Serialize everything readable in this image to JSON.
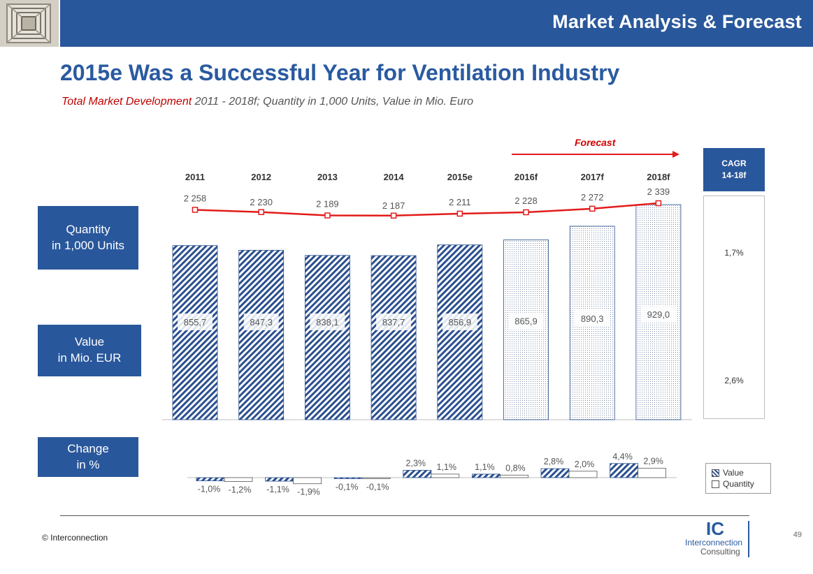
{
  "header": {
    "title": "Market Analysis & Forecast",
    "image_icon": "ventilation-grille-icon"
  },
  "title": "2015e Was a Successful Year for Ventilation Industry",
  "subtitle": {
    "highlight": "Total Market Development",
    "rest": " 2011 - 2018f; Quantity in 1,000 Units, Value in Mio. Euro"
  },
  "side_labels": {
    "quantity": "Quantity\nin 1,000 Units",
    "value": "Value\nin Mio. EUR",
    "change": "Change\nin %"
  },
  "forecast_label": "Forecast",
  "cagr": {
    "header": "CAGR\n14-18f",
    "quantity": "1,7%",
    "value": "2,6%"
  },
  "legend": {
    "value": "Value",
    "quantity": "Quantity"
  },
  "footer": {
    "copyright": "© Interconnection",
    "page": "49",
    "logo_big": "IC",
    "logo_line1": "Interconnection",
    "logo_line2": "Consulting"
  },
  "colors": {
    "brand": "#29579b",
    "title": "#2a5aa0",
    "red": "#e31b1b",
    "hatch": "#2a4f8f"
  },
  "chart_data": {
    "type": "bar",
    "categories": [
      "2011",
      "2012",
      "2013",
      "2014",
      "2015e",
      "2016f",
      "2017f",
      "2018f"
    ],
    "forecast_from_index": 5,
    "series": [
      {
        "name": "Value",
        "unit": "Mio. EUR",
        "values": [
          855.7,
          847.3,
          838.1,
          837.7,
          856.9,
          865.9,
          890.3,
          929.0
        ],
        "labels": [
          "855,7",
          "847,3",
          "838,1",
          "837,7",
          "856,9",
          "865,9",
          "890,3",
          "929,0"
        ]
      },
      {
        "name": "Quantity",
        "unit": "1,000 Units",
        "type": "line",
        "values": [
          2258,
          2230,
          2189,
          2187,
          2211,
          2228,
          2272,
          2339
        ],
        "labels": [
          "2 258",
          "2 230",
          "2 189",
          "2 187",
          "2 211",
          "2 228",
          "2 272",
          "2 339"
        ]
      }
    ],
    "change": {
      "value": [
        -1.0,
        -1.1,
        -0.1,
        2.3,
        1.1,
        2.8,
        4.4
      ],
      "value_labels": [
        "-1,0%",
        "-1,1%",
        "-0,1%",
        "2,3%",
        "1,1%",
        "2,8%",
        "4,4%"
      ],
      "quantity": [
        -1.2,
        -1.9,
        -0.1,
        1.1,
        0.8,
        2.0,
        2.9
      ],
      "quantity_labels": [
        "-1,2%",
        "-1,9%",
        "-0,1%",
        "1,1%",
        "0,8%",
        "2,0%",
        "2,9%"
      ]
    }
  }
}
